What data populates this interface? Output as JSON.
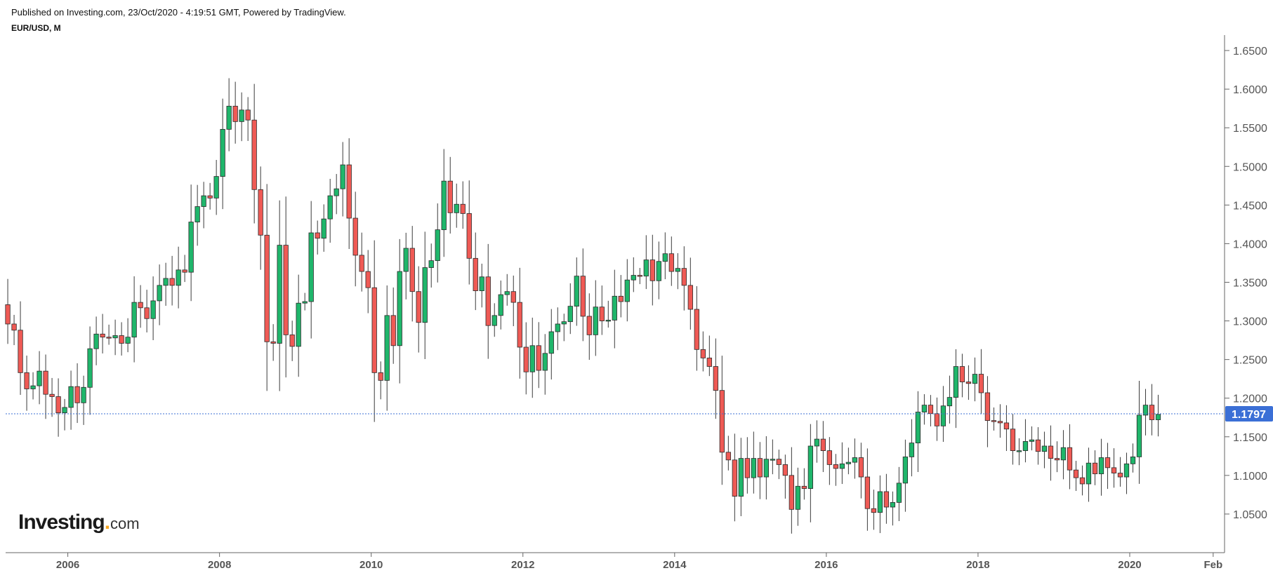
{
  "header": {
    "published": "Published on Investing.com, 23/Oct/2020 - 4:19:51 GMT, Powered by TradingView.",
    "symbol": "EUR/USD, M"
  },
  "logo": {
    "main": "Investing",
    "dot": ".",
    "suffix": "com"
  },
  "colors": {
    "up": "#1fb66b",
    "down": "#ef5a55",
    "price_line": "#3b6fd6",
    "axis": "#666666",
    "label_bg": "#3b6fd6"
  },
  "chart_data": {
    "type": "candlestick",
    "title": "EUR/USD, M",
    "interval": "monthly",
    "ylim": [
      1.0,
      1.67
    ],
    "y_ticks": [
      1.05,
      1.1,
      1.15,
      1.2,
      1.25,
      1.3,
      1.35,
      1.4,
      1.45,
      1.5,
      1.55,
      1.6,
      1.65
    ],
    "y_tick_labels": [
      "1.0500",
      "1.1000",
      "1.1500",
      "1.2000",
      "1.2500",
      "1.3000",
      "1.3500",
      "1.4000",
      "1.4500",
      "1.5000",
      "1.5500",
      "1.6000",
      "1.6500"
    ],
    "x_ticks": [
      {
        "label": "2006",
        "t": 2006
      },
      {
        "label": "2008",
        "t": 2008
      },
      {
        "label": "2010",
        "t": 2010
      },
      {
        "label": "2012",
        "t": 2012
      },
      {
        "label": "2014",
        "t": 2014
      },
      {
        "label": "2016",
        "t": 2016
      },
      {
        "label": "2018",
        "t": 2018
      },
      {
        "label": "2020",
        "t": 2020
      },
      {
        "label": "Feb",
        "t": 2021.1
      }
    ],
    "x_range": [
      2005.18,
      2021.25
    ],
    "last_price": 1.1797,
    "last_price_label": "1.1797",
    "start": {
      "year": 2005,
      "month": 3
    },
    "closes": [
      1.296,
      1.288,
      1.233,
      1.212,
      1.216,
      1.235,
      1.205,
      1.202,
      1.181,
      1.188,
      1.215,
      1.194,
      1.214,
      1.264,
      1.283,
      1.279,
      1.278,
      1.281,
      1.271,
      1.279,
      1.324,
      1.317,
      1.303,
      1.326,
      1.346,
      1.355,
      1.346,
      1.366,
      1.363,
      1.428,
      1.448,
      1.462,
      1.459,
      1.487,
      1.548,
      1.578,
      1.558,
      1.573,
      1.56,
      1.47,
      1.411,
      1.273,
      1.271,
      1.398,
      1.282,
      1.267,
      1.323,
      1.325,
      1.414,
      1.407,
      1.432,
      1.462,
      1.471,
      1.502,
      1.433,
      1.385,
      1.364,
      1.343,
      1.233,
      1.223,
      1.307,
      1.268,
      1.364,
      1.394,
      1.338,
      1.298,
      1.369,
      1.378,
      1.418,
      1.481,
      1.44,
      1.451,
      1.439,
      1.381,
      1.339,
      1.357,
      1.294,
      1.307,
      1.334,
      1.338,
      1.324,
      1.266,
      1.234,
      1.268,
      1.236,
      1.258,
      1.286,
      1.296,
      1.299,
      1.319,
      1.358,
      1.306,
      1.282,
      1.318,
      1.3,
      1.301,
      1.332,
      1.325,
      1.353,
      1.359,
      1.358,
      1.379,
      1.352,
      1.377,
      1.387,
      1.364,
      1.368,
      1.346,
      1.315,
      1.263,
      1.252,
      1.241,
      1.21,
      1.13,
      1.12,
      1.073,
      1.122,
      1.097,
      1.122,
      1.098,
      1.121,
      1.121,
      1.114,
      1.1,
      1.056,
      1.086,
      1.083,
      1.138,
      1.147,
      1.132,
      1.114,
      1.109,
      1.115,
      1.117,
      1.123,
      1.098,
      1.057,
      1.052,
      1.079,
      1.059,
      1.065,
      1.09,
      1.124,
      1.142,
      1.182,
      1.191,
      1.18,
      1.164,
      1.19,
      1.201,
      1.241,
      1.221,
      1.219,
      1.231,
      1.207,
      1.171,
      1.17,
      1.168,
      1.16,
      1.132,
      1.132,
      1.144,
      1.146,
      1.131,
      1.138,
      1.122,
      1.12,
      1.136,
      1.107,
      1.097,
      1.089,
      1.116,
      1.102,
      1.123,
      1.11,
      1.103,
      1.098,
      1.115,
      1.124,
      1.178,
      1.191,
      1.172,
      1.179
    ],
    "opens": [
      1.321,
      1.296,
      1.288,
      1.233,
      1.212,
      1.216,
      1.235,
      1.205,
      1.202,
      1.181,
      1.188,
      1.215,
      1.194,
      1.214,
      1.264,
      1.283,
      1.279,
      1.278,
      1.281,
      1.271,
      1.279,
      1.324,
      1.317,
      1.303,
      1.326,
      1.346,
      1.355,
      1.346,
      1.366,
      1.363,
      1.428,
      1.448,
      1.462,
      1.459,
      1.487,
      1.548,
      1.578,
      1.558,
      1.573,
      1.56,
      1.47,
      1.411,
      1.273,
      1.271,
      1.398,
      1.282,
      1.267,
      1.323,
      1.325,
      1.414,
      1.407,
      1.432,
      1.462,
      1.471,
      1.502,
      1.433,
      1.385,
      1.364,
      1.343,
      1.233,
      1.223,
      1.307,
      1.268,
      1.364,
      1.394,
      1.338,
      1.298,
      1.369,
      1.378,
      1.418,
      1.481,
      1.44,
      1.451,
      1.439,
      1.381,
      1.339,
      1.357,
      1.294,
      1.307,
      1.334,
      1.338,
      1.324,
      1.266,
      1.234,
      1.268,
      1.236,
      1.258,
      1.286,
      1.296,
      1.299,
      1.319,
      1.358,
      1.306,
      1.282,
      1.318,
      1.3,
      1.301,
      1.332,
      1.325,
      1.353,
      1.359,
      1.358,
      1.379,
      1.352,
      1.377,
      1.387,
      1.364,
      1.368,
      1.346,
      1.315,
      1.263,
      1.252,
      1.241,
      1.21,
      1.13,
      1.12,
      1.073,
      1.122,
      1.097,
      1.122,
      1.098,
      1.121,
      1.121,
      1.114,
      1.1,
      1.056,
      1.086,
      1.083,
      1.138,
      1.147,
      1.132,
      1.114,
      1.109,
      1.115,
      1.117,
      1.123,
      1.098,
      1.057,
      1.052,
      1.079,
      1.059,
      1.065,
      1.09,
      1.124,
      1.142,
      1.182,
      1.191,
      1.18,
      1.164,
      1.19,
      1.201,
      1.241,
      1.221,
      1.219,
      1.231,
      1.207,
      1.171,
      1.17,
      1.168,
      1.16,
      1.132,
      1.132,
      1.144,
      1.146,
      1.131,
      1.138,
      1.122,
      1.12,
      1.136,
      1.107,
      1.097,
      1.089,
      1.116,
      1.102,
      1.123,
      1.11,
      1.103,
      1.098,
      1.115,
      1.124,
      1.178,
      1.191,
      1.172
    ]
  }
}
